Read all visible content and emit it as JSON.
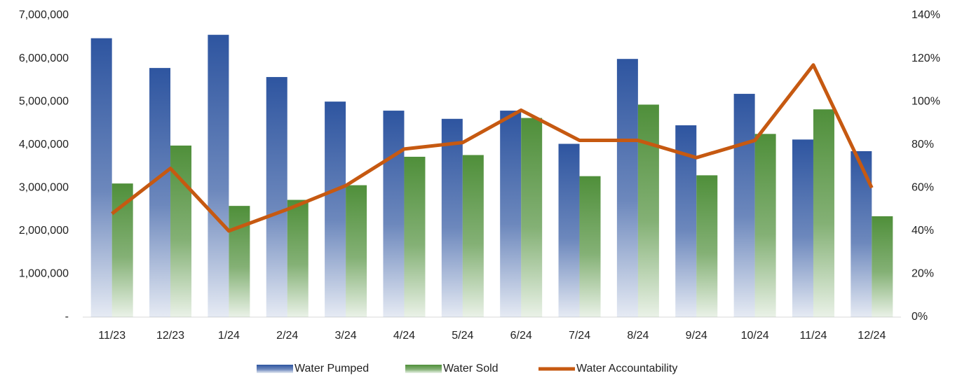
{
  "chart_data": {
    "type": "bar_line",
    "categories": [
      "11/23",
      "12/23",
      "1/24",
      "2/24",
      "3/24",
      "4/24",
      "5/24",
      "6/24",
      "7/24",
      "8/24",
      "9/24",
      "10/24",
      "11/24",
      "12/24"
    ],
    "series": [
      {
        "name": "Water Pumped",
        "type": "bar",
        "color": "#2e55a0",
        "values": [
          6470000,
          5780000,
          6550000,
          5570000,
          5000000,
          4790000,
          4600000,
          4790000,
          4020000,
          5990000,
          4450000,
          5180000,
          4120000,
          3850000
        ]
      },
      {
        "name": "Water Sold",
        "type": "bar",
        "color": "#4f8f3a",
        "values": [
          3100000,
          3980000,
          2580000,
          2720000,
          3060000,
          3720000,
          3760000,
          4620000,
          3270000,
          4930000,
          3290000,
          4250000,
          4820000,
          2340000
        ]
      },
      {
        "name": "Water Accountability",
        "type": "line",
        "axis": "y2",
        "color": "#c65911",
        "values": [
          48,
          69,
          40,
          50,
          61,
          78,
          81,
          96,
          82,
          82,
          74,
          82,
          117,
          60
        ]
      }
    ],
    "ylim": [
      0,
      7000000
    ],
    "yticks": [
      {
        "value": 0,
        "label": "-"
      },
      {
        "value": 1000000,
        "label": "1,000,000"
      },
      {
        "value": 2000000,
        "label": "2,000,000"
      },
      {
        "value": 3000000,
        "label": "3,000,000"
      },
      {
        "value": 4000000,
        "label": "4,000,000"
      },
      {
        "value": 5000000,
        "label": "5,000,000"
      },
      {
        "value": 6000000,
        "label": "6,000,000"
      },
      {
        "value": 7000000,
        "label": "7,000,000"
      }
    ],
    "y2lim": [
      0,
      140
    ],
    "y2ticks": [
      {
        "value": 0,
        "label": "0%"
      },
      {
        "value": 20,
        "label": "20%"
      },
      {
        "value": 40,
        "label": "40%"
      },
      {
        "value": 60,
        "label": "60%"
      },
      {
        "value": 80,
        "label": "80%"
      },
      {
        "value": 100,
        "label": "100%"
      },
      {
        "value": 120,
        "label": "120%"
      },
      {
        "value": 140,
        "label": "140%"
      }
    ],
    "grid": false,
    "legend": "bottom"
  }
}
